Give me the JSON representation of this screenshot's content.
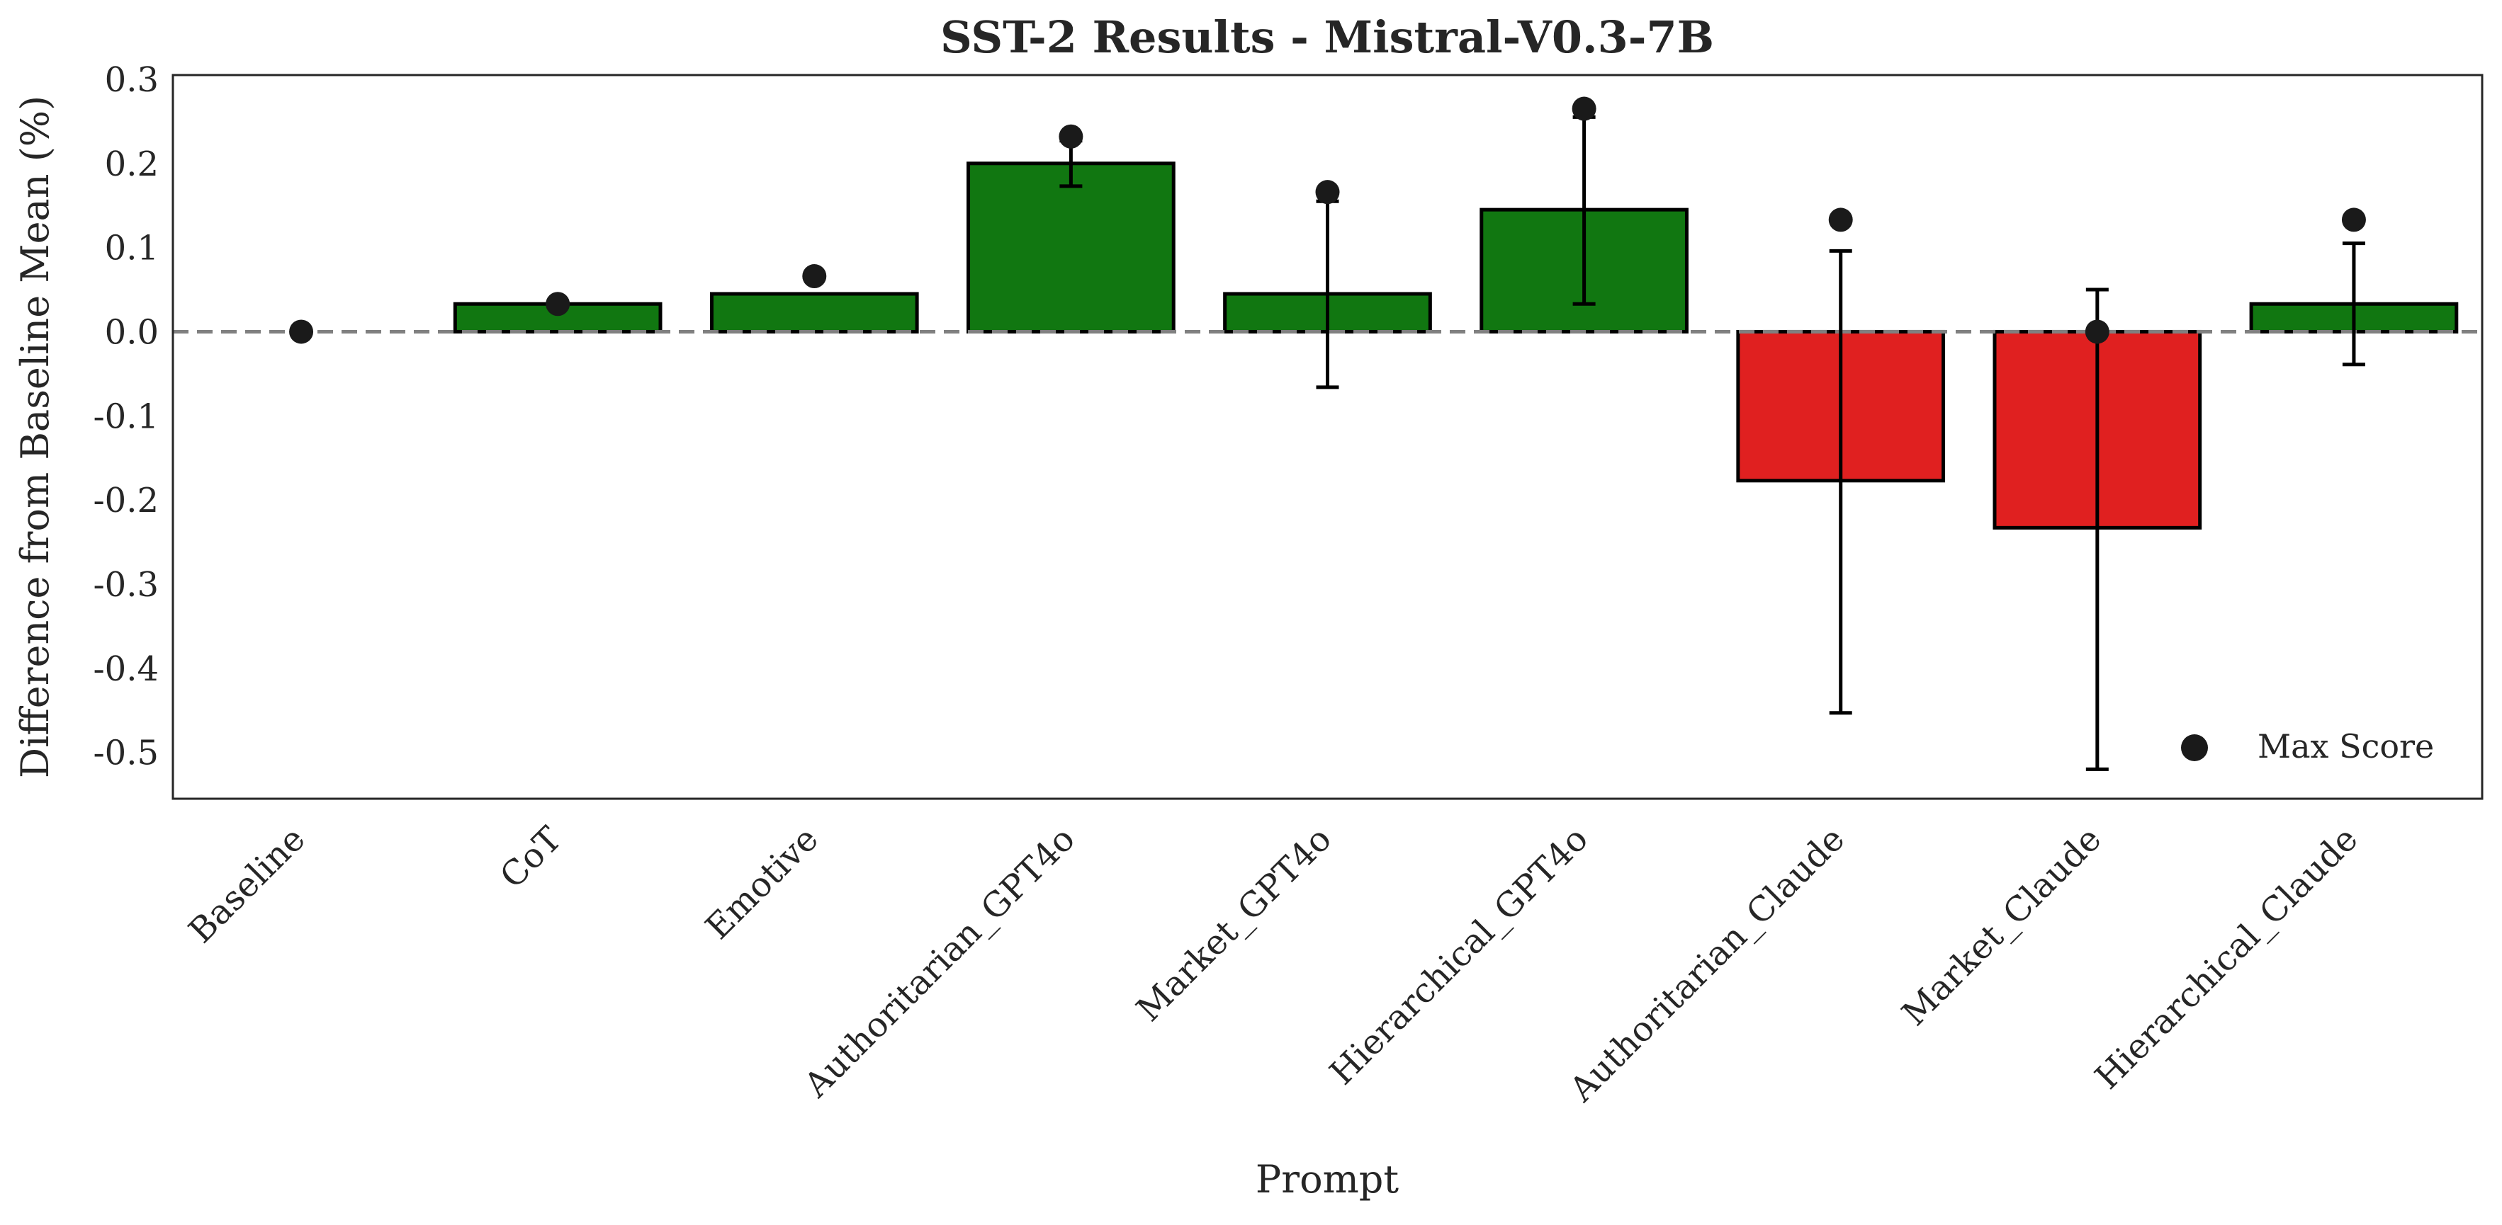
{
  "chart_data": {
    "type": "bar",
    "title": "SST-2 Results - Mistral-V0.3-7B",
    "xlabel": "Prompt",
    "ylabel": "Difference from Baseline Mean (%)",
    "ylim": [
      -0.555,
      0.305
    ],
    "yticks": [
      0.3,
      0.2,
      0.1,
      0.0,
      -0.1,
      -0.2,
      -0.3,
      -0.4,
      -0.5
    ],
    "ytick_labels": [
      "0.3",
      "0.2",
      "0.1",
      "0.0",
      "-0.1",
      "-0.2",
      "-0.3",
      "-0.4",
      "-0.5"
    ],
    "grid": false,
    "categories": [
      "Baseline",
      "CoT",
      "Emotive",
      "Authoritarian_GPT4o",
      "Market_GPT4o",
      "Hierarchical_GPT4o",
      "Authoritarian_Claude",
      "Market_Claude",
      "Hierarchical_Claude"
    ],
    "values": [
      0.0,
      0.033,
      0.045,
      0.2,
      0.045,
      0.145,
      -0.177,
      -0.233,
      0.033
    ],
    "error_low": [
      0.0,
      0.033,
      0.045,
      0.173,
      -0.066,
      0.033,
      -0.453,
      -0.52,
      -0.039
    ],
    "error_high": [
      0.0,
      0.033,
      0.045,
      0.227,
      0.155,
      0.255,
      0.096,
      0.05,
      0.105
    ],
    "max_score": [
      0.0,
      0.033,
      0.066,
      0.232,
      0.166,
      0.265,
      0.133,
      0.0,
      0.133
    ],
    "reference_line": 0.0,
    "legend": {
      "placement": "lower-right",
      "entries": [
        "Max Score"
      ]
    },
    "colors": {
      "positive": "#117711",
      "negative": "#e02020",
      "marker": "#1a1a1a",
      "reference": "#808080"
    }
  }
}
